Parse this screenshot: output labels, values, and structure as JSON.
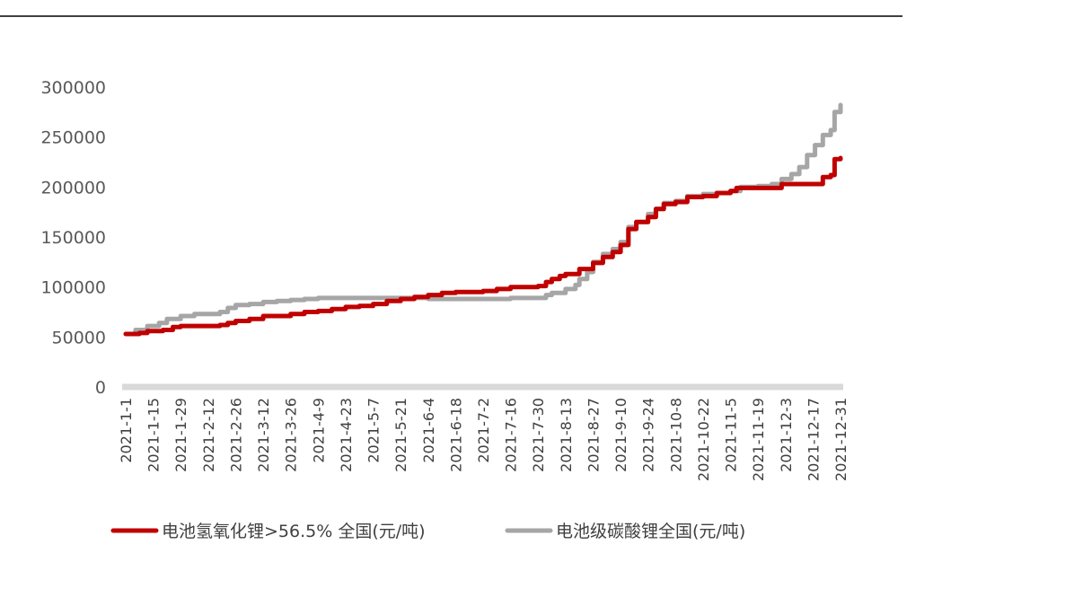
{
  "chart_data": {
    "type": "line",
    "title": "",
    "xlabel": "",
    "ylabel": "",
    "ylim": [
      0,
      300000
    ],
    "y_ticks": [
      "0",
      "50000",
      "100000",
      "150000",
      "200000",
      "250000",
      "300000"
    ],
    "x_ticks": [
      "2021-1-1",
      "2021-1-15",
      "2021-1-29",
      "2021-2-12",
      "2021-2-26",
      "2021-3-12",
      "2021-3-26",
      "2021-4-9",
      "2021-4-23",
      "2021-5-7",
      "2021-5-21",
      "2021-6-4",
      "2021-6-18",
      "2021-7-2",
      "2021-7-16",
      "2021-7-30",
      "2021-8-13",
      "2021-8-27",
      "2021-9-10",
      "2021-9-24",
      "2021-10-8",
      "2021-10-22",
      "2021-11-5",
      "2021-11-19",
      "2021-12-3",
      "2021-12-17",
      "2021-12-31"
    ],
    "grid": false,
    "legend_position": "bottom",
    "series": [
      {
        "name": "电池氢氧化锂>56.5% 全国(元/吨)",
        "color": "#c00000",
        "points": [
          [
            "2021-1-1",
            53000
          ],
          [
            "2021-1-8",
            54000
          ],
          [
            "2021-1-12",
            56000
          ],
          [
            "2021-1-20",
            57000
          ],
          [
            "2021-1-25",
            60000
          ],
          [
            "2021-1-29",
            61000
          ],
          [
            "2021-2-18",
            62000
          ],
          [
            "2021-2-22",
            64000
          ],
          [
            "2021-2-26",
            66000
          ],
          [
            "2021-3-5",
            68000
          ],
          [
            "2021-3-12",
            71000
          ],
          [
            "2021-3-26",
            73000
          ],
          [
            "2021-4-2",
            75000
          ],
          [
            "2021-4-9",
            76000
          ],
          [
            "2021-4-16",
            78000
          ],
          [
            "2021-4-23",
            80000
          ],
          [
            "2021-4-30",
            81000
          ],
          [
            "2021-5-7",
            83000
          ],
          [
            "2021-5-14",
            86000
          ],
          [
            "2021-5-21",
            88000
          ],
          [
            "2021-5-28",
            90000
          ],
          [
            "2021-6-4",
            92000
          ],
          [
            "2021-6-11",
            94000
          ],
          [
            "2021-6-18",
            95000
          ],
          [
            "2021-6-25",
            95000
          ],
          [
            "2021-7-2",
            96000
          ],
          [
            "2021-7-9",
            98000
          ],
          [
            "2021-7-16",
            100000
          ],
          [
            "2021-7-23",
            100000
          ],
          [
            "2021-7-30",
            101000
          ],
          [
            "2021-8-3",
            105000
          ],
          [
            "2021-8-6",
            108000
          ],
          [
            "2021-8-10",
            111000
          ],
          [
            "2021-8-13",
            113000
          ],
          [
            "2021-8-20",
            118000
          ],
          [
            "2021-8-27",
            124000
          ],
          [
            "2021-9-1",
            130000
          ],
          [
            "2021-9-6",
            135000
          ],
          [
            "2021-9-10",
            142000
          ],
          [
            "2021-9-14",
            158000
          ],
          [
            "2021-9-18",
            165000
          ],
          [
            "2021-9-24",
            170000
          ],
          [
            "2021-9-28",
            178000
          ],
          [
            "2021-10-2",
            183000
          ],
          [
            "2021-10-8",
            185000
          ],
          [
            "2021-10-14",
            190000
          ],
          [
            "2021-10-22",
            191000
          ],
          [
            "2021-10-29",
            194000
          ],
          [
            "2021-11-5",
            196000
          ],
          [
            "2021-11-8",
            199000
          ],
          [
            "2021-11-19",
            199000
          ],
          [
            "2021-11-26",
            199000
          ],
          [
            "2021-12-1",
            203000
          ],
          [
            "2021-12-10",
            203000
          ],
          [
            "2021-12-20",
            203000
          ],
          [
            "2021-12-22",
            210000
          ],
          [
            "2021-12-26",
            212000
          ],
          [
            "2021-12-28",
            228000
          ],
          [
            "2021-12-31",
            229000
          ]
        ]
      },
      {
        "name": "电池级碳酸锂全国(元/吨)",
        "color": "#a6a6a6",
        "points": [
          [
            "2021-1-1",
            53000
          ],
          [
            "2021-1-6",
            57000
          ],
          [
            "2021-1-12",
            61000
          ],
          [
            "2021-1-18",
            64000
          ],
          [
            "2021-1-22",
            68000
          ],
          [
            "2021-1-29",
            71000
          ],
          [
            "2021-2-5",
            73000
          ],
          [
            "2021-2-12",
            73000
          ],
          [
            "2021-2-18",
            75000
          ],
          [
            "2021-2-22",
            79000
          ],
          [
            "2021-2-26",
            82000
          ],
          [
            "2021-3-5",
            83000
          ],
          [
            "2021-3-12",
            85000
          ],
          [
            "2021-3-19",
            86000
          ],
          [
            "2021-3-26",
            87000
          ],
          [
            "2021-4-2",
            88000
          ],
          [
            "2021-4-9",
            89000
          ],
          [
            "2021-4-23",
            89000
          ],
          [
            "2021-5-7",
            89000
          ],
          [
            "2021-5-21",
            89000
          ],
          [
            "2021-6-4",
            88000
          ],
          [
            "2021-6-18",
            88000
          ],
          [
            "2021-7-2",
            88000
          ],
          [
            "2021-7-16",
            89000
          ],
          [
            "2021-7-30",
            89000
          ],
          [
            "2021-8-3",
            92000
          ],
          [
            "2021-8-6",
            94000
          ],
          [
            "2021-8-13",
            98000
          ],
          [
            "2021-8-18",
            102000
          ],
          [
            "2021-8-20",
            108000
          ],
          [
            "2021-8-24",
            115000
          ],
          [
            "2021-8-27",
            125000
          ],
          [
            "2021-9-1",
            133000
          ],
          [
            "2021-9-6",
            138000
          ],
          [
            "2021-9-10",
            145000
          ],
          [
            "2021-9-14",
            160000
          ],
          [
            "2021-9-18",
            165000
          ],
          [
            "2021-9-24",
            173000
          ],
          [
            "2021-9-28",
            178000
          ],
          [
            "2021-10-2",
            184000
          ],
          [
            "2021-10-8",
            186000
          ],
          [
            "2021-10-14",
            191000
          ],
          [
            "2021-10-22",
            193000
          ],
          [
            "2021-10-29",
            194000
          ],
          [
            "2021-11-5",
            196000
          ],
          [
            "2021-11-10",
            200000
          ],
          [
            "2021-11-19",
            201000
          ],
          [
            "2021-11-26",
            203000
          ],
          [
            "2021-12-1",
            208000
          ],
          [
            "2021-12-6",
            213000
          ],
          [
            "2021-12-10",
            220000
          ],
          [
            "2021-12-14",
            232000
          ],
          [
            "2021-12-18",
            242000
          ],
          [
            "2021-12-22",
            252000
          ],
          [
            "2021-12-26",
            257000
          ],
          [
            "2021-12-28",
            275000
          ],
          [
            "2021-12-31",
            282000
          ]
        ]
      }
    ]
  }
}
